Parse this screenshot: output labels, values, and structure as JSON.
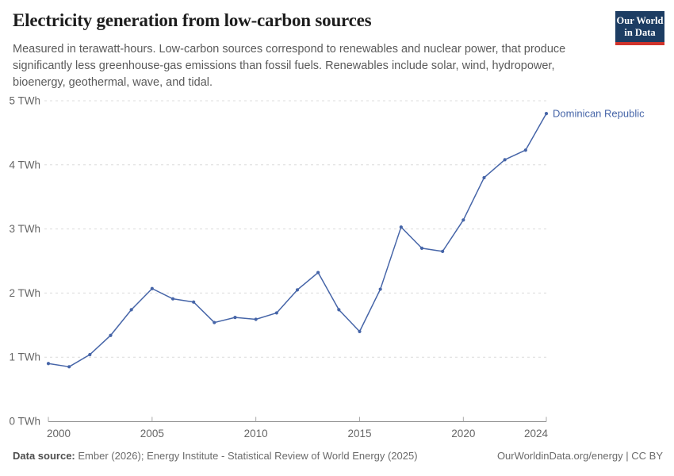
{
  "header": {
    "title": "Electricity generation from low-carbon sources",
    "subtitle_lines": [
      "Measured in terawatt-hours. Low-carbon sources correspond to renewables and nuclear power, that produce",
      "significantly less greenhouse-gas emissions than fossil fuels. Renewables include solar, wind, hydropower,",
      "bioenergy, geothermal, wave, and tidal."
    ]
  },
  "logo": {
    "line1": "Our World",
    "line2": "in Data",
    "bg_color": "#1d3d63",
    "stripe_color": "#d0342c",
    "text_color": "#ffffff"
  },
  "chart_data": {
    "type": "line",
    "title": "Electricity generation from low-carbon sources",
    "unit": "TWh",
    "x": [
      2000,
      2001,
      2002,
      2003,
      2004,
      2005,
      2006,
      2007,
      2008,
      2009,
      2010,
      2011,
      2012,
      2013,
      2014,
      2015,
      2016,
      2017,
      2018,
      2019,
      2020,
      2021,
      2022,
      2023,
      2024
    ],
    "series": [
      {
        "name": "Dominican Republic",
        "color": "#4665a8",
        "values": [
          0.9,
          0.85,
          1.04,
          1.34,
          1.74,
          2.07,
          1.91,
          1.86,
          1.54,
          1.62,
          1.59,
          1.69,
          2.05,
          2.32,
          1.74,
          1.4,
          2.06,
          3.03,
          2.7,
          2.65,
          3.14,
          3.8,
          4.08,
          4.23,
          4.8
        ]
      }
    ],
    "xlabel": "",
    "ylabel": "",
    "ylim": [
      0,
      5
    ],
    "yticks": [
      0,
      1,
      2,
      3,
      4,
      5
    ],
    "ytick_labels": [
      "0 TWh",
      "1 TWh",
      "2 TWh",
      "3 TWh",
      "4 TWh",
      "5 TWh"
    ],
    "xticks": [
      2000,
      2005,
      2010,
      2015,
      2020,
      2024
    ],
    "xtick_labels": [
      "2000",
      "2005",
      "2010",
      "2015",
      "2020",
      "2024"
    ],
    "grid": "dashed-horizontal",
    "legend": "end-label",
    "end_label": "Dominican Republic",
    "colors": {
      "gridline": "#dcdcdc",
      "axis": "#8f8f8f",
      "tick": "#a9a9a9",
      "tick_label": "#666666"
    }
  },
  "footer": {
    "source_label": "Data source:",
    "source_text": " Ember (2026); Energy Institute - Statistical Review of World Energy (2025)",
    "right_text": "OurWorldinData.org/energy | CC BY"
  }
}
